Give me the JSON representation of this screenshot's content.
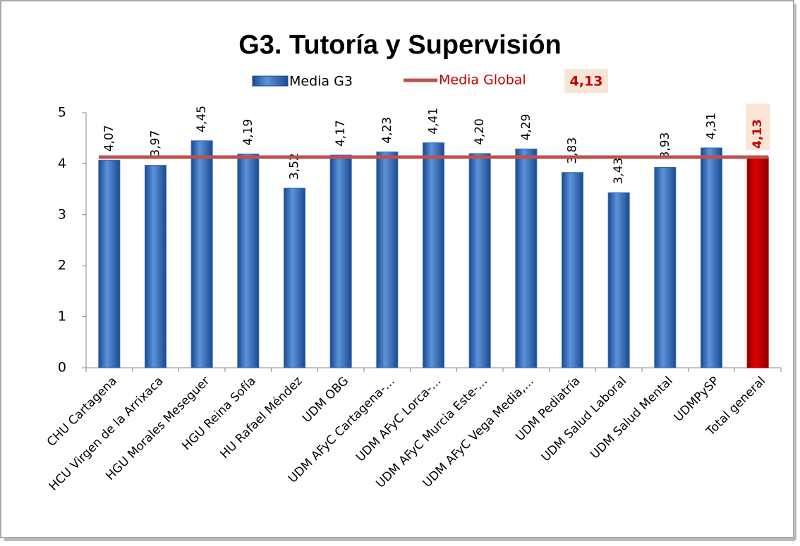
{
  "chart_data": {
    "type": "bar",
    "title": "G3. Tutoría y Supervisión",
    "categories": [
      "CHU Cartagena",
      "HCU Virgen de la Arrixaca",
      "HGU Morales Meseguer",
      "HGU Reina Sofía",
      "HU Rafael Méndez",
      "UDM OBG",
      "UDM AFyC Cartagena-…",
      "UDM AFyC Lorca-…",
      "UDM AFyC Murcia Este-…",
      "UDM AFyC Vega Media,…",
      "UDM Pediatría",
      "UDM Salud Laboral",
      "UDM Salud Mental",
      "UDMPySP",
      "Total general"
    ],
    "series": [
      {
        "name": "Media G3",
        "color": "#2f6bbf",
        "colors": [
          "#2f6bbf",
          "#2f6bbf",
          "#2f6bbf",
          "#2f6bbf",
          "#2f6bbf",
          "#2f6bbf",
          "#2f6bbf",
          "#2f6bbf",
          "#2f6bbf",
          "#2f6bbf",
          "#2f6bbf",
          "#2f6bbf",
          "#2f6bbf",
          "#2f6bbf",
          "#c00000"
        ],
        "values": [
          4.07,
          3.97,
          4.45,
          4.19,
          3.52,
          4.17,
          4.23,
          4.41,
          4.2,
          4.29,
          3.83,
          3.43,
          3.93,
          4.31,
          4.13
        ],
        "value_labels": [
          "4,07",
          "3,97",
          "4,45",
          "4,19",
          "3,52",
          "4,17",
          "4,23",
          "4,41",
          "4,20",
          "4,29",
          "3,83",
          "3,43",
          "3,93",
          "4,31",
          "4,13"
        ]
      }
    ],
    "reference_line": {
      "name": "Media Global",
      "value": 4.13,
      "label": "4,13",
      "color": "#c0504d"
    },
    "ylim": [
      0,
      5
    ],
    "yticks": [
      0,
      1,
      2,
      3,
      4,
      5
    ],
    "grid": false
  }
}
